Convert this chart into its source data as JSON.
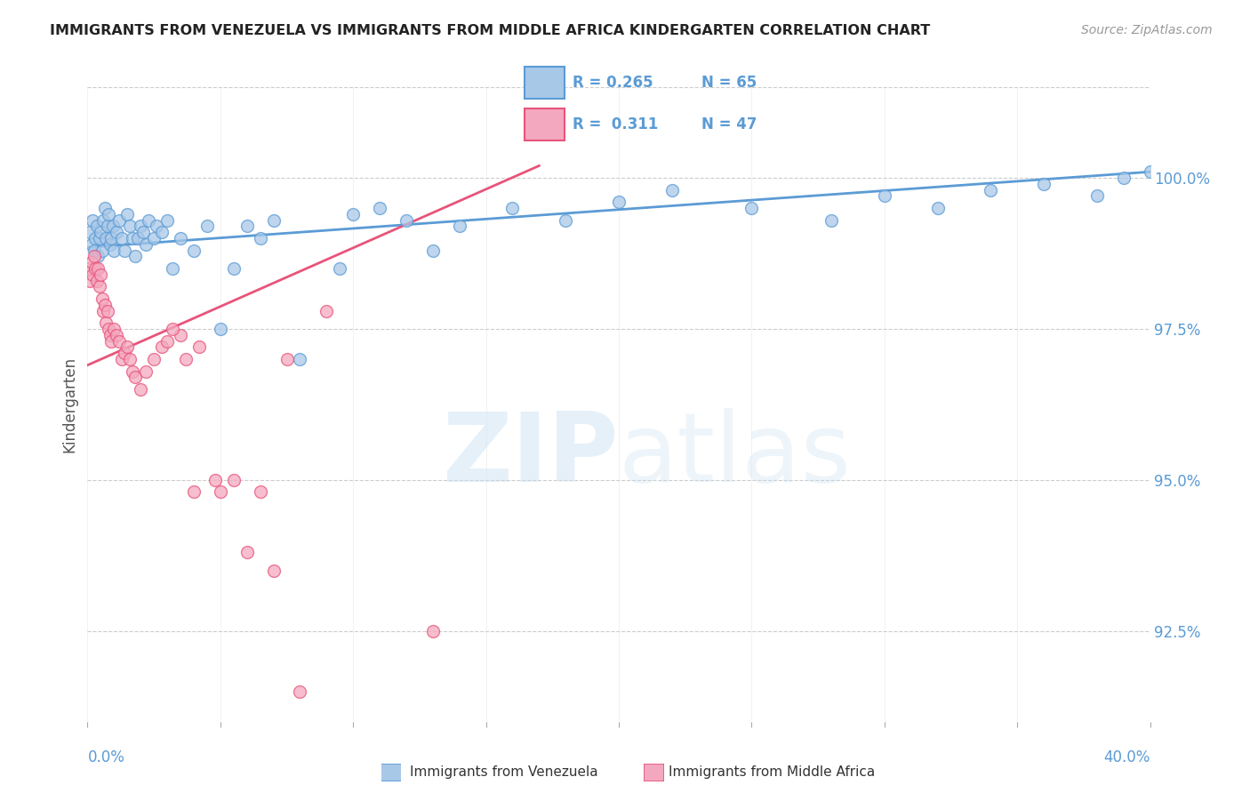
{
  "title": "IMMIGRANTS FROM VENEZUELA VS IMMIGRANTS FROM MIDDLE AFRICA KINDERGARTEN CORRELATION CHART",
  "source": "Source: ZipAtlas.com",
  "ylabel": "Kindergarten",
  "xlim": [
    0.0,
    40.0
  ],
  "ylim": [
    91.0,
    101.5
  ],
  "right_yticks": [
    92.5,
    95.0,
    97.5,
    100.0
  ],
  "right_ytick_labels": [
    "92.5%",
    "95.0%",
    "97.5%",
    "100.0%"
  ],
  "legend_line1": "R = 0.265   N = 65",
  "legend_line2": "R =  0.311   N = 47",
  "color_venezuela": "#A8C8E8",
  "color_middle_africa": "#F4A8C0",
  "color_venezuela_edge": "#5B9BD5",
  "color_middle_africa_edge": "#E8547A",
  "color_venezuela_line": "#5B9BD5",
  "color_middle_africa_line": "#E8547A",
  "color_axis_text": "#5B9BD5",
  "venezuela_x": [
    0.1,
    0.15,
    0.2,
    0.25,
    0.3,
    0.35,
    0.4,
    0.45,
    0.5,
    0.55,
    0.6,
    0.65,
    0.7,
    0.75,
    0.8,
    0.85,
    0.9,
    0.95,
    1.0,
    1.1,
    1.2,
    1.3,
    1.4,
    1.5,
    1.6,
    1.7,
    1.8,
    1.9,
    2.0,
    2.1,
    2.2,
    2.3,
    2.5,
    2.6,
    2.8,
    3.0,
    3.2,
    3.5,
    4.0,
    4.5,
    5.0,
    5.5,
    6.0,
    6.5,
    7.0,
    8.0,
    9.5,
    10.0,
    11.0,
    12.0,
    13.0,
    14.0,
    16.0,
    18.0,
    20.0,
    22.0,
    25.0,
    28.0,
    30.0,
    32.0,
    34.0,
    36.0,
    38.0,
    39.0,
    40.0
  ],
  "venezuela_y": [
    99.1,
    98.9,
    99.3,
    98.8,
    99.0,
    99.2,
    98.7,
    99.0,
    99.1,
    98.8,
    99.3,
    99.5,
    99.0,
    99.2,
    99.4,
    98.9,
    99.0,
    99.2,
    98.8,
    99.1,
    99.3,
    99.0,
    98.8,
    99.4,
    99.2,
    99.0,
    98.7,
    99.0,
    99.2,
    99.1,
    98.9,
    99.3,
    99.0,
    99.2,
    99.1,
    99.3,
    98.5,
    99.0,
    98.8,
    99.2,
    97.5,
    98.5,
    99.2,
    99.0,
    99.3,
    97.0,
    98.5,
    99.4,
    99.5,
    99.3,
    98.8,
    99.2,
    99.5,
    99.3,
    99.6,
    99.8,
    99.5,
    99.3,
    99.7,
    99.5,
    99.8,
    99.9,
    99.7,
    100.0,
    100.1
  ],
  "middle_africa_x": [
    0.05,
    0.1,
    0.15,
    0.2,
    0.25,
    0.3,
    0.35,
    0.4,
    0.45,
    0.5,
    0.55,
    0.6,
    0.65,
    0.7,
    0.75,
    0.8,
    0.85,
    0.9,
    1.0,
    1.1,
    1.2,
    1.3,
    1.4,
    1.5,
    1.6,
    1.7,
    1.8,
    2.0,
    2.2,
    2.5,
    2.8,
    3.0,
    3.5,
    4.0,
    5.0,
    6.0,
    7.0,
    8.0,
    3.2,
    3.7,
    4.2,
    4.8,
    5.5,
    6.5,
    7.5,
    9.0,
    13.0
  ],
  "middle_africa_y": [
    98.5,
    98.3,
    98.6,
    98.4,
    98.7,
    98.5,
    98.3,
    98.5,
    98.2,
    98.4,
    98.0,
    97.8,
    97.9,
    97.6,
    97.8,
    97.5,
    97.4,
    97.3,
    97.5,
    97.4,
    97.3,
    97.0,
    97.1,
    97.2,
    97.0,
    96.8,
    96.7,
    96.5,
    96.8,
    97.0,
    97.2,
    97.3,
    97.4,
    94.8,
    94.8,
    93.8,
    93.5,
    91.5,
    97.5,
    97.0,
    97.2,
    95.0,
    95.0,
    94.8,
    97.0,
    97.8,
    92.5
  ],
  "trendline_venezuela_x0": 0.0,
  "trendline_venezuela_y0": 98.85,
  "trendline_venezuela_x1": 40.0,
  "trendline_venezuela_y1": 100.1,
  "trendline_africa_x0": 0.0,
  "trendline_africa_y0": 96.9,
  "trendline_africa_x1": 17.0,
  "trendline_africa_y1": 100.2
}
